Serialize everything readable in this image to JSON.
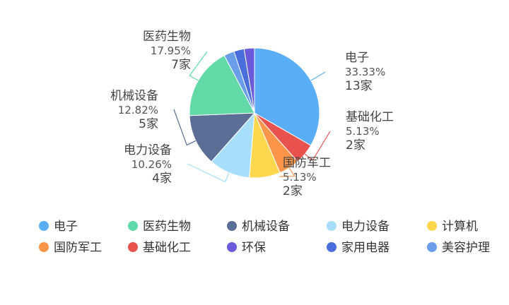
{
  "chart_data": {
    "type": "pie",
    "title": "",
    "legend_position": "bottom",
    "slices": [
      {
        "name": "电子",
        "percent": "33.33%",
        "count": "13家",
        "value": 13,
        "color": "#5aaef5",
        "labeled": true
      },
      {
        "name": "基础化工",
        "percent": "5.13%",
        "count": "2家",
        "value": 2,
        "color": "#e8524f",
        "labeled": true
      },
      {
        "name": "国防军工",
        "percent": "5.13%",
        "count": "2家",
        "value": 2,
        "color": "#fb9549",
        "labeled": true
      },
      {
        "name": "计算机",
        "percent": "",
        "count": "",
        "value": 3,
        "color": "#fdd84e",
        "labeled": false
      },
      {
        "name": "电力设备",
        "percent": "10.26%",
        "count": "4家",
        "value": 4,
        "color": "#a7dffa",
        "labeled": true
      },
      {
        "name": "机械设备",
        "percent": "12.82%",
        "count": "5家",
        "value": 5,
        "color": "#5b6e96",
        "labeled": true
      },
      {
        "name": "医药生物",
        "percent": "17.95%",
        "count": "7家",
        "value": 7,
        "color": "#62d9a7",
        "labeled": true
      },
      {
        "name": "美容护理",
        "percent": "",
        "count": "",
        "value": 1,
        "color": "#6a9ee8",
        "labeled": false
      },
      {
        "name": "家用电器",
        "percent": "",
        "count": "",
        "value": 1,
        "color": "#4a6edb",
        "labeled": false
      },
      {
        "name": "环保",
        "percent": "",
        "count": "",
        "value": 1,
        "color": "#6b5bdb",
        "labeled": false
      }
    ],
    "legend": [
      {
        "name": "电子",
        "color": "#5aaef5"
      },
      {
        "name": "医药生物",
        "color": "#62d9a7"
      },
      {
        "name": "机械设备",
        "color": "#5b6e96"
      },
      {
        "name": "电力设备",
        "color": "#a7dffa"
      },
      {
        "name": "计算机",
        "color": "#fdd84e"
      },
      {
        "name": "国防军工",
        "color": "#fb9549"
      },
      {
        "name": "基础化工",
        "color": "#e8524f"
      },
      {
        "name": "环保",
        "color": "#6b5bdb"
      },
      {
        "name": "家用电器",
        "color": "#4a6edb"
      },
      {
        "name": "美容护理",
        "color": "#6a9ee8"
      }
    ]
  }
}
